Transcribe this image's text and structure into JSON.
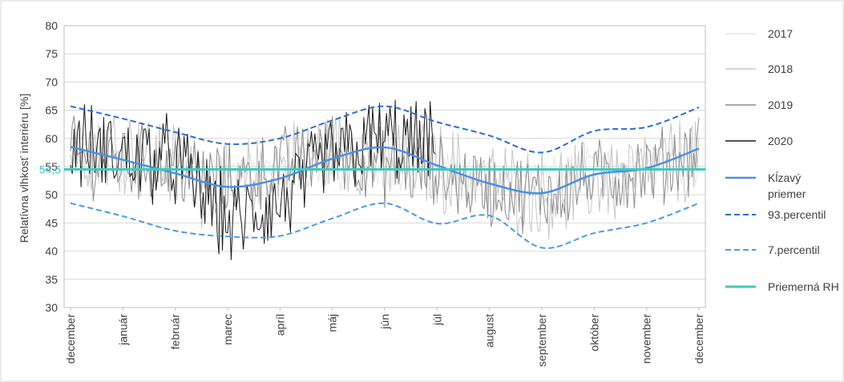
{
  "chart_data": {
    "type": "line",
    "title": "",
    "xlabel": "",
    "ylabel": "Relatívna vlhkosť interiéru [%]",
    "ylim": [
      30,
      80
    ],
    "yticks": [
      30,
      35,
      40,
      45,
      50,
      55,
      60,
      65,
      70,
      75,
      80
    ],
    "categories": [
      "december",
      "január",
      "február",
      "marec",
      "apríl",
      "máj",
      "jún",
      "júl",
      "august",
      "september",
      "október",
      "november",
      "december"
    ],
    "grid": "horizontal",
    "legend_position": "right",
    "average_label": "54,5",
    "colors": {
      "2017": "#e6e6e6",
      "2018": "#c8c8c8",
      "2019": "#8c8c8c",
      "2020": "#1a1a1a",
      "moving_average": "#4a90e2",
      "p93": "#2a6ed6",
      "p7": "#4a9be8",
      "avg": "#40c8c0"
    },
    "series": [
      {
        "name": "2017",
        "style": "solid-line",
        "base": [
          55,
          54,
          55,
          54,
          54,
          54,
          54,
          55,
          53,
          53,
          55,
          55,
          55
        ],
        "amplitude": 3
      },
      {
        "name": "2018",
        "style": "solid-line",
        "base": [
          58,
          59,
          55,
          50,
          55,
          58,
          57,
          55,
          52,
          50,
          52,
          54,
          57
        ],
        "amplitude": 7
      },
      {
        "name": "2019",
        "style": "solid-line",
        "base": [
          57,
          56,
          55,
          52,
          55,
          58,
          55,
          54,
          51,
          50,
          53,
          54,
          58
        ],
        "amplitude": 6
      },
      {
        "name": "2020",
        "style": "solid-line",
        "base": [
          59,
          57,
          56,
          45,
          48,
          57,
          60,
          58,
          null,
          null,
          null,
          null,
          null
        ],
        "amplitude": 7
      },
      {
        "name": "Kĺzavý priemer",
        "style": "smooth-line",
        "values": [
          58.5,
          56.2,
          53.8,
          51.4,
          52.9,
          56.4,
          58.4,
          55.2,
          52.0,
          50.3,
          53.6,
          54.7,
          58.2
        ]
      },
      {
        "name": "93.percentil",
        "style": "dashed-line",
        "values": [
          65.7,
          63.5,
          61.1,
          59.0,
          60.0,
          63.2,
          65.7,
          62.9,
          60.5,
          57.5,
          61.3,
          62.0,
          65.5
        ]
      },
      {
        "name": "7.percentil",
        "style": "dashed-line",
        "values": [
          48.5,
          46.2,
          43.6,
          42.6,
          42.7,
          45.8,
          48.5,
          44.9,
          46.3,
          40.6,
          43.2,
          45.0,
          48.5
        ]
      },
      {
        "name": "Priemerná RH",
        "style": "flat-line",
        "value": 54.5
      }
    ]
  },
  "legend": [
    {
      "label": "2017",
      "key": "2017",
      "style": "solid"
    },
    {
      "label": "2018",
      "key": "2018",
      "style": "solid"
    },
    {
      "label": "2019",
      "key": "2019",
      "style": "solid"
    },
    {
      "label": "2020",
      "key": "2020",
      "style": "solid"
    },
    {
      "label": "Kĺzavý priemer",
      "key": "moving_average",
      "style": "solid-thick"
    },
    {
      "label": "93.percentil",
      "key": "p93",
      "style": "dashed"
    },
    {
      "label": "7.percentil",
      "key": "p7",
      "style": "dashed"
    },
    {
      "label": "Priemerná RH",
      "key": "avg",
      "style": "solid-thick"
    }
  ]
}
